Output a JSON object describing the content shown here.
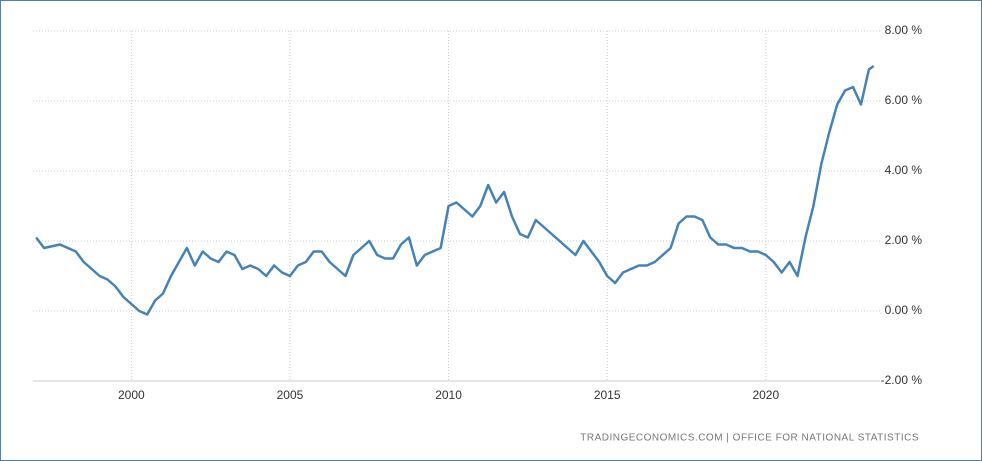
{
  "chart_data": {
    "type": "line",
    "source": "TRADINGECONOMICS.COM | OFFICE FOR NATIONAL STATISTICS",
    "x": [
      1997,
      1997.25,
      1997.5,
      1997.75,
      1998,
      1998.25,
      1998.5,
      1998.75,
      1999,
      1999.25,
      1999.5,
      1999.75,
      2000,
      2000.25,
      2000.5,
      2000.75,
      2001,
      2001.25,
      2001.5,
      2001.75,
      2002,
      2002.25,
      2002.5,
      2002.75,
      2003,
      2003.25,
      2003.5,
      2003.75,
      2004,
      2004.25,
      2004.5,
      2004.75,
      2005,
      2005.25,
      2005.5,
      2005.75,
      2006,
      2006.25,
      2006.5,
      2006.75,
      2007,
      2007.25,
      2007.5,
      2007.75,
      2008,
      2008.25,
      2008.5,
      2008.75,
      2009,
      2009.25,
      2009.5,
      2009.75,
      2010,
      2010.25,
      2010.5,
      2010.75,
      2011,
      2011.25,
      2011.5,
      2011.75,
      2012,
      2012.25,
      2012.5,
      2012.75,
      2013,
      2013.25,
      2013.5,
      2013.75,
      2014,
      2014.25,
      2014.5,
      2014.75,
      2015,
      2015.25,
      2015.5,
      2015.75,
      2016,
      2016.25,
      2016.5,
      2016.75,
      2017,
      2017.25,
      2017.5,
      2017.75,
      2018,
      2018.25,
      2018.5,
      2018.75,
      2019,
      2019.25,
      2019.5,
      2019.75,
      2020,
      2020.25,
      2020.5,
      2020.75,
      2021,
      2021.25,
      2021.5,
      2021.75,
      2022,
      2022.25,
      2022.5,
      2022.75,
      2023,
      2023.25,
      2023.4
    ],
    "series": [
      {
        "color": "#4682b4",
        "values": [
          2.1,
          1.8,
          1.85,
          1.9,
          1.8,
          1.7,
          1.4,
          1.2,
          1.0,
          0.9,
          0.7,
          0.4,
          0.2,
          0.0,
          -0.1,
          0.3,
          0.5,
          1.0,
          1.4,
          1.8,
          1.3,
          1.7,
          1.5,
          1.4,
          1.7,
          1.6,
          1.2,
          1.3,
          1.2,
          1.0,
          1.3,
          1.1,
          1.0,
          1.3,
          1.4,
          1.7,
          1.7,
          1.4,
          1.2,
          1.0,
          1.6,
          1.8,
          2.0,
          1.6,
          1.5,
          1.5,
          1.9,
          2.1,
          1.3,
          1.6,
          1.7,
          1.8,
          3.0,
          3.1,
          2.9,
          2.7,
          3.0,
          3.6,
          3.1,
          3.4,
          2.7,
          2.2,
          2.1,
          2.6,
          2.4,
          2.2,
          2.0,
          1.8,
          1.6,
          2.0,
          1.7,
          1.4,
          1.0,
          0.8,
          1.1,
          1.2,
          1.3,
          1.3,
          1.4,
          1.6,
          1.8,
          2.5,
          2.7,
          2.7,
          2.6,
          2.1,
          1.9,
          1.9,
          1.8,
          1.8,
          1.7,
          1.7,
          1.6,
          1.4,
          1.1,
          1.4,
          1.0,
          2.1,
          3.0,
          4.2,
          5.1,
          5.9,
          6.3,
          6.4,
          5.9,
          6.9,
          7.0
        ]
      }
    ],
    "xlim": [
      1996.9,
      2023.6
    ],
    "xticks": [
      2000,
      2005,
      2010,
      2015,
      2020
    ],
    "ylim": [
      -2,
      8
    ],
    "yticks": [
      {
        "value": -2,
        "label": "-2.00 %"
      },
      {
        "value": 0,
        "label": "0.00 %"
      },
      {
        "value": 2,
        "label": "2.00 %"
      },
      {
        "value": 4,
        "label": "4.00 %"
      },
      {
        "value": 6,
        "label": "6.00 %"
      },
      {
        "value": 8,
        "label": "8.00 %"
      }
    ],
    "grid": true
  }
}
